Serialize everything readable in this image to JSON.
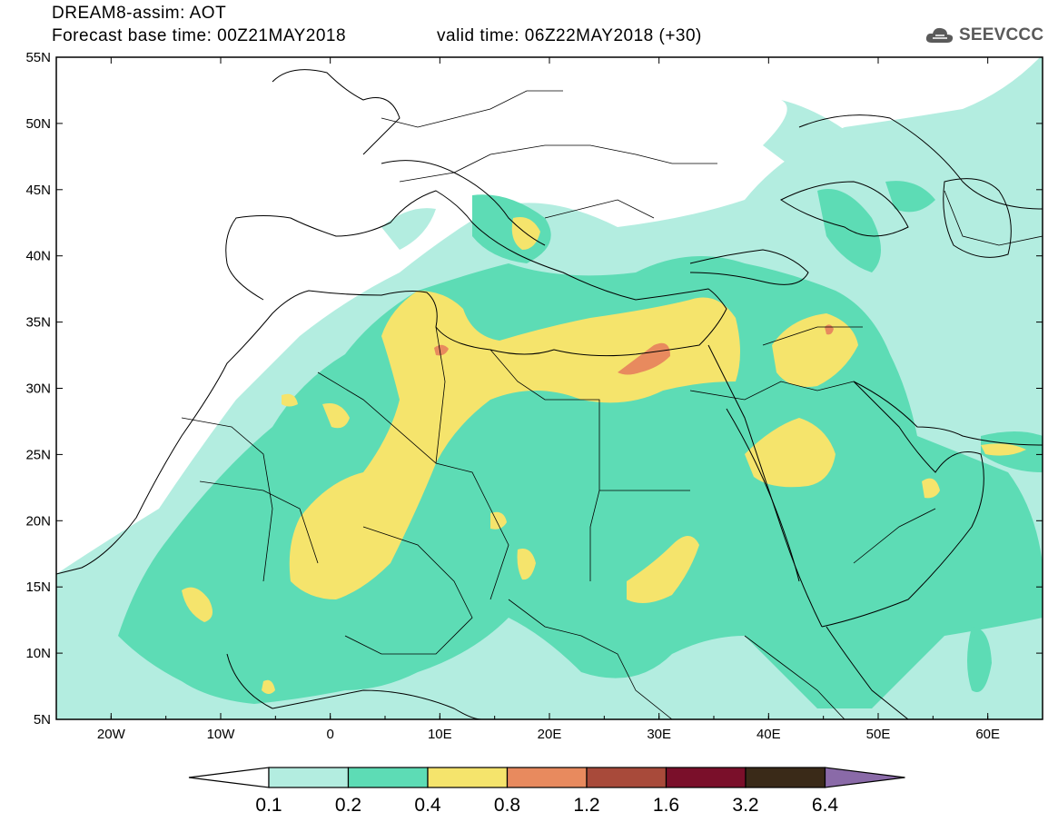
{
  "header": {
    "title": "DREAM8-assim: AOT",
    "base_time": "Forecast base time: 00Z21MAY2018",
    "valid_time": "valid time: 06Z22MAY2018 (+30)"
  },
  "logo": {
    "text": "SEEVCCC",
    "icon": "cloud-icon",
    "color": "#5a5a5a"
  },
  "map": {
    "lon_range": [
      -25,
      65
    ],
    "lat_range": [
      5,
      55
    ],
    "lat_labels": [
      "55N",
      "50N",
      "45N",
      "40N",
      "35N",
      "30N",
      "25N",
      "20N",
      "15N",
      "10N",
      "5N"
    ],
    "lon_labels": [
      "20W",
      "10W",
      "0",
      "10E",
      "20E",
      "30E",
      "40E",
      "50E",
      "60E"
    ]
  },
  "colorbar": {
    "levels": [
      "0.1",
      "0.2",
      "0.4",
      "0.8",
      "1.2",
      "1.6",
      "3.2",
      "6.4"
    ],
    "colors": [
      "#b3ede0",
      "#5ddcb5",
      "#f5e46c",
      "#e88a5e",
      "#a84a3a",
      "#7a0f2a",
      "#3a2a18",
      "#8a6aa8"
    ],
    "below_color": "#ffffff"
  }
}
